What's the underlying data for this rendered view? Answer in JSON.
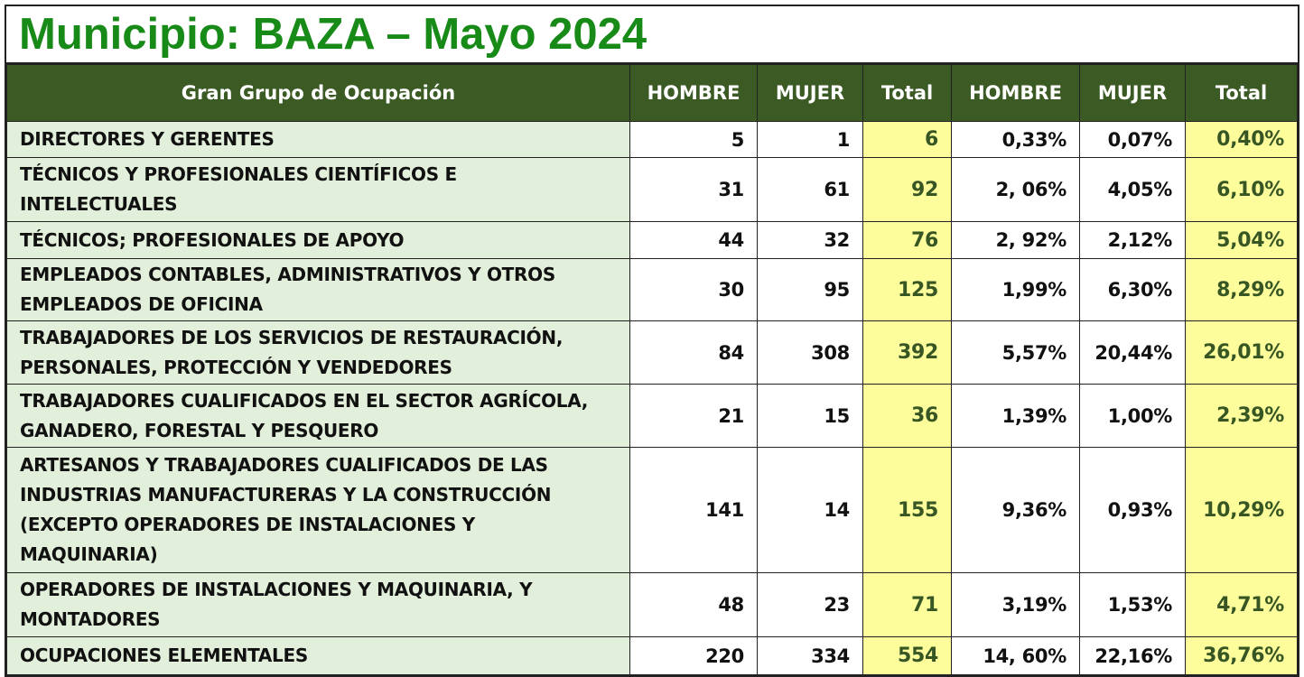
{
  "title": "Municipio: BAZA – Mayo 2024",
  "columns": [
    "Gran Grupo de Ocupación",
    "HOMBRE",
    "MUJER",
    "Total",
    "HOMBRE",
    "MUJER",
    "Total"
  ],
  "rows": [
    {
      "name": "DIRECTORES Y GERENTES",
      "h": "5",
      "m": "1",
      "t": "6",
      "hp": "0,33%",
      "mp": "0,07%",
      "tp": "0,40%"
    },
    {
      "name": "TÉCNICOS Y PROFESIONALES CIENTÍFICOS E INTELECTUALES",
      "h": "31",
      "m": "61",
      "t": "92",
      "hp": "2, 06%",
      "mp": "4,05%",
      "tp": "6,10%"
    },
    {
      "name": "TÉCNICOS; PROFESIONALES DE APOYO",
      "h": "44",
      "m": "32",
      "t": "76",
      "hp": "2, 92%",
      "mp": "2,12%",
      "tp": "5,04%"
    },
    {
      "name": "EMPLEADOS CONTABLES, ADMINISTRATIVOS Y OTROS EMPLEADOS DE OFICINA",
      "h": "30",
      "m": "95",
      "t": "125",
      "hp": "1,99%",
      "mp": "6,30%",
      "tp": "8,29%"
    },
    {
      "name": "TRABAJADORES DE LOS SERVICIOS DE RESTAURACIÓN, PERSONALES, PROTECCIÓN Y VENDEDORES",
      "h": "84",
      "m": "308",
      "t": "392",
      "hp": "5,57%",
      "mp": "20,44%",
      "tp": "26,01%"
    },
    {
      "name": "TRABAJADORES CUALIFICADOS EN EL SECTOR AGRÍCOLA, GANADERO, FORESTAL Y PESQUERO",
      "h": "21",
      "m": "15",
      "t": "36",
      "hp": "1,39%",
      "mp": "1,00%",
      "tp": "2,39%"
    },
    {
      "name": "ARTESANOS Y TRABAJADORES CUALIFICADOS DE LAS INDUSTRIAS MANUFACTURERAS Y LA CONSTRUCCIÓN (EXCEPTO OPERADORES DE INSTALACIONES Y MAQUINARIA)",
      "h": "141",
      "m": "14",
      "t": "155",
      "hp": "9,36%",
      "mp": "0,93%",
      "tp": "10,29%"
    },
    {
      "name": "OPERADORES DE INSTALACIONES Y MAQUINARIA, Y MONTADORES",
      "h": "48",
      "m": "23",
      "t": "71",
      "hp": "3,19%",
      "mp": "1,53%",
      "tp": "4,71%"
    },
    {
      "name": "OCUPACIONES ELEMENTALES",
      "h": "220",
      "m": "334",
      "t": "554",
      "hp": "14, 60%",
      "mp": "22,16%",
      "tp": "36,76%"
    }
  ],
  "colors": {
    "title": "#178a17",
    "header_bg": "#3b5a24",
    "name_bg": "#e2efda",
    "total_bg": "#fdfd9c",
    "total_text": "#375623"
  }
}
